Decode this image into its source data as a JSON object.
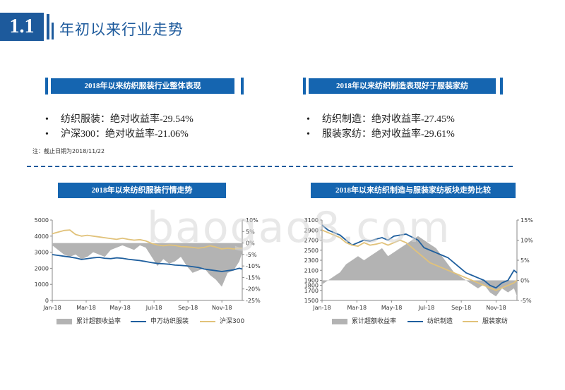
{
  "header": {
    "section_number": "1.1",
    "title": "年初以来行业走势"
  },
  "summary_left": {
    "heading": "2018年以来纺织服装行业整体表现",
    "bullets": [
      "纺织服装：绝对收益率-29.54%",
      "沪深300：绝对收益率-21.06%"
    ]
  },
  "summary_right": {
    "heading": "2018年以来纺织制造表现好于服装家纺",
    "bullets": [
      "纺织制造：绝对收益率-27.45%",
      "服装家纺：绝对收益率-29.61%"
    ]
  },
  "note": "注：截止日期为2018/11/22",
  "watermark": "baogao8.com",
  "colors": {
    "accent": "#1565b0",
    "navy_line": "#1f5f9e",
    "gold_line": "#e1c27a",
    "area_fill": "#b3b3b3"
  },
  "chart_data": [
    {
      "type": "line",
      "title": "2018年以来纺织服装行情走势",
      "x_ticks": [
        "Jan-18",
        "Mar-18",
        "May-18",
        "Jul-18",
        "Sep-18",
        "Nov-18"
      ],
      "x_range": [
        0,
        325
      ],
      "y_left": {
        "ylim": [
          0,
          5000
        ],
        "ticks": [
          "0",
          "1000",
          "2000",
          "3000",
          "4000",
          "5000"
        ]
      },
      "y_right": {
        "ylim": [
          -25,
          10
        ],
        "ticks": [
          "10%",
          "5%",
          "0%",
          "-5%",
          "-10%",
          "-15%",
          "-20%",
          "-25%"
        ]
      },
      "series": [
        {
          "name": "累计超额收益率",
          "kind": "area",
          "axis": "right",
          "x": [
            0,
            10,
            20,
            30,
            40,
            50,
            60,
            70,
            80,
            90,
            100,
            110,
            120,
            130,
            140,
            150,
            160,
            170,
            180,
            190,
            200,
            210,
            220,
            230,
            240,
            250,
            260,
            270,
            280,
            290,
            300,
            310,
            320,
            325
          ],
          "y": [
            -1,
            -3,
            -5,
            -6,
            -5,
            -7,
            -6,
            -4,
            -5,
            -6,
            -3,
            -2,
            -1,
            -2,
            -3,
            -1,
            -2,
            -6,
            -10,
            -7,
            -9,
            -8,
            -6,
            -10,
            -13,
            -12,
            -11,
            -14,
            -16,
            -19,
            -13,
            -12,
            -8,
            -4
          ]
        },
        {
          "name": "申万纺织服装",
          "kind": "line",
          "axis": "left",
          "x": [
            0,
            10,
            20,
            30,
            40,
            50,
            60,
            70,
            80,
            90,
            100,
            110,
            120,
            130,
            140,
            150,
            160,
            170,
            180,
            190,
            200,
            210,
            220,
            230,
            240,
            250,
            260,
            270,
            280,
            290,
            300,
            310,
            320,
            325
          ],
          "y": [
            2850,
            2800,
            2750,
            2700,
            2640,
            2550,
            2600,
            2650,
            2680,
            2620,
            2600,
            2650,
            2620,
            2560,
            2520,
            2480,
            2420,
            2350,
            2300,
            2280,
            2250,
            2200,
            2180,
            2150,
            2100,
            2050,
            1950,
            1900,
            1850,
            1800,
            1850,
            1900,
            2000,
            1950
          ]
        },
        {
          "name": "沪深300",
          "kind": "line",
          "axis": "left",
          "x": [
            0,
            10,
            20,
            30,
            40,
            50,
            60,
            70,
            80,
            90,
            100,
            110,
            120,
            130,
            140,
            150,
            160,
            170,
            180,
            190,
            200,
            210,
            220,
            230,
            240,
            250,
            260,
            270,
            280,
            290,
            300,
            310,
            320,
            325
          ],
          "y": [
            4150,
            4250,
            4350,
            4380,
            4100,
            4000,
            4050,
            4000,
            3950,
            3900,
            3850,
            3800,
            3870,
            3800,
            3750,
            3780,
            3700,
            3550,
            3450,
            3400,
            3450,
            3420,
            3350,
            3330,
            3300,
            3250,
            3300,
            3400,
            3320,
            3200,
            3250,
            3200,
            3250,
            3250
          ]
        }
      ]
    },
    {
      "type": "line",
      "title": "2018年以来纺织制造与服装家纺板块走势比较",
      "x_ticks": [
        "Jan-18",
        "Mar-18",
        "May-18",
        "Jul-18",
        "Sep-18",
        "Nov-18"
      ],
      "x_range": [
        0,
        325
      ],
      "y_left": {
        "ylim": [
          1500,
          3100
        ],
        "ticks": [
          "1500",
          "1700",
          "1800",
          "1900",
          "2100",
          "2300",
          "2500",
          "2700",
          "2900",
          "3100"
        ]
      },
      "y_right": {
        "ylim": [
          -5,
          15
        ],
        "ticks": [
          "15%",
          "10%",
          "5%",
          "0%",
          "-5%"
        ]
      },
      "series": [
        {
          "name": "累计超额收益率",
          "kind": "area",
          "axis": "right",
          "x": [
            0,
            10,
            20,
            30,
            40,
            50,
            60,
            70,
            80,
            90,
            100,
            110,
            120,
            130,
            140,
            150,
            160,
            170,
            180,
            190,
            200,
            210,
            220,
            230,
            240,
            250,
            260,
            270,
            280,
            290,
            300,
            310,
            320,
            325
          ],
          "y": [
            -1,
            0,
            1,
            2,
            4,
            5,
            6,
            5,
            6,
            7,
            8,
            6,
            7,
            8,
            9,
            10,
            11,
            10,
            9,
            8,
            6,
            4,
            2,
            1,
            0,
            -1,
            -2,
            -1,
            -3,
            -4,
            -2,
            -3,
            -2,
            -4
          ]
        },
        {
          "name": "纺织制造",
          "kind": "line",
          "axis": "left",
          "x": [
            0,
            10,
            20,
            30,
            40,
            50,
            60,
            70,
            80,
            90,
            100,
            110,
            120,
            130,
            140,
            150,
            160,
            170,
            180,
            190,
            200,
            210,
            220,
            230,
            240,
            250,
            260,
            270,
            280,
            290,
            300,
            310,
            320,
            325
          ],
          "y": [
            3000,
            2900,
            2850,
            2800,
            2700,
            2600,
            2650,
            2700,
            2680,
            2720,
            2750,
            2700,
            2780,
            2800,
            2820,
            2760,
            2700,
            2550,
            2500,
            2450,
            2400,
            2350,
            2250,
            2150,
            2050,
            2000,
            1950,
            1900,
            1800,
            1750,
            1850,
            1900,
            2100,
            2050
          ]
        },
        {
          "name": "服装家纺",
          "kind": "line",
          "axis": "left",
          "x": [
            0,
            10,
            20,
            30,
            40,
            50,
            60,
            70,
            80,
            90,
            100,
            110,
            120,
            130,
            140,
            150,
            160,
            170,
            180,
            190,
            200,
            210,
            220,
            230,
            240,
            250,
            260,
            270,
            280,
            290,
            300,
            310,
            320,
            325
          ],
          "y": [
            2900,
            2850,
            2800,
            2750,
            2650,
            2600,
            2580,
            2650,
            2600,
            2620,
            2650,
            2600,
            2650,
            2700,
            2650,
            2550,
            2450,
            2350,
            2250,
            2200,
            2150,
            2100,
            2050,
            2000,
            1950,
            1900,
            1850,
            1800,
            1750,
            1700,
            1750,
            1800,
            1850,
            1900
          ]
        }
      ]
    }
  ]
}
